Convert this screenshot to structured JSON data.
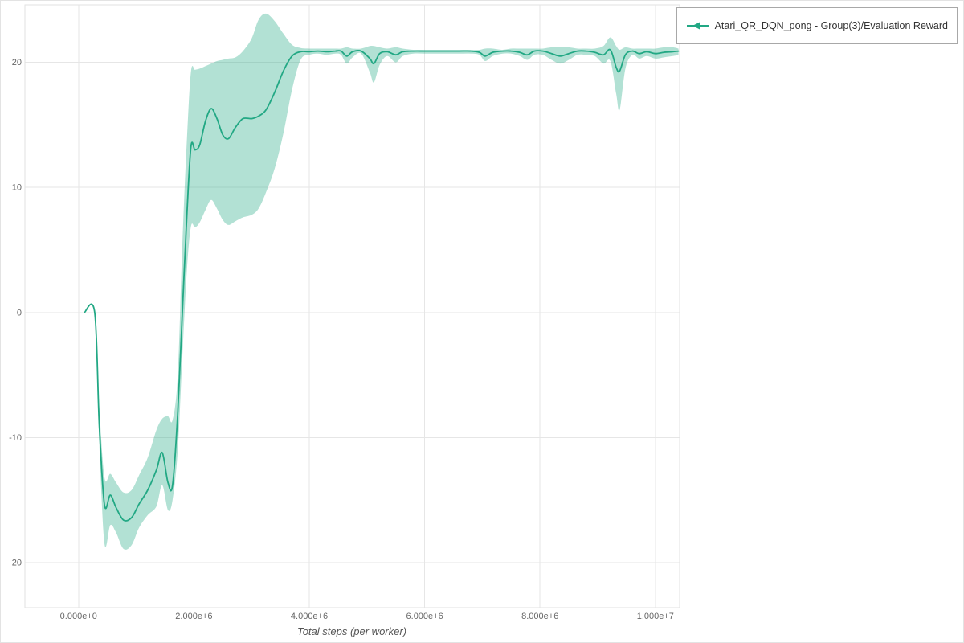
{
  "chart_data": {
    "type": "line",
    "title": "",
    "xlabel": "Total steps (per worker)",
    "ylabel": "",
    "xlim": [
      -930000,
      10420000
    ],
    "ylim": [
      -23.6,
      24.6
    ],
    "grid": true,
    "legend": {
      "position": "top-right",
      "entries": [
        "Atari_QR_DQN_pong - Group(3)/Evaluation Reward"
      ]
    },
    "x_ticks": {
      "values": [
        0,
        2000000,
        4000000,
        6000000,
        8000000,
        10000000
      ],
      "labels": [
        "0.000e+0",
        "2.000e+6",
        "4.000e+6",
        "6.000e+6",
        "8.000e+6",
        "1.000e+7"
      ]
    },
    "y_ticks": {
      "values": [
        -20,
        -10,
        0,
        10,
        20
      ],
      "labels": [
        "-20",
        "-10",
        "0",
        "10",
        "20"
      ]
    },
    "series": [
      {
        "name": "Atari_QR_DQN_pong - Group(3)/Evaluation Reward",
        "color": "#22a884",
        "band_opacity": 0.35,
        "x_unit": 1000000,
        "point_format": [
          "x_millions_of_steps",
          "mean_reward",
          "band_lower",
          "band_upper"
        ],
        "points": [
          [
            0.1,
            0.0,
            0.0,
            0.0
          ],
          [
            0.28,
            0.0,
            -0.1,
            0.1
          ],
          [
            0.36,
            -9.0,
            -10.5,
            -7.5
          ],
          [
            0.45,
            -15.4,
            -18.5,
            -13.2
          ],
          [
            0.55,
            -14.6,
            -17.0,
            -12.9
          ],
          [
            0.65,
            -15.6,
            -17.6,
            -13.6
          ],
          [
            0.78,
            -16.6,
            -18.9,
            -14.4
          ],
          [
            0.92,
            -16.4,
            -18.6,
            -14.2
          ],
          [
            1.05,
            -15.3,
            -17.2,
            -13.0
          ],
          [
            1.2,
            -14.2,
            -16.2,
            -11.6
          ],
          [
            1.35,
            -12.6,
            -15.5,
            -9.4
          ],
          [
            1.45,
            -11.2,
            -13.8,
            -8.5
          ],
          [
            1.55,
            -13.6,
            -15.8,
            -8.3
          ],
          [
            1.63,
            -13.8,
            -15.0,
            -8.6
          ],
          [
            1.72,
            -8.0,
            -11.0,
            -5.0
          ],
          [
            1.8,
            0.0,
            -3.5,
            5.5
          ],
          [
            1.88,
            8.0,
            3.5,
            14.0
          ],
          [
            1.95,
            13.3,
            6.9,
            19.3
          ],
          [
            2.02,
            13.0,
            6.8,
            19.4
          ],
          [
            2.1,
            13.4,
            7.2,
            19.5
          ],
          [
            2.2,
            15.3,
            8.2,
            19.7
          ],
          [
            2.3,
            16.3,
            9.0,
            19.9
          ],
          [
            2.4,
            15.5,
            8.3,
            20.1
          ],
          [
            2.5,
            14.2,
            7.4,
            20.2
          ],
          [
            2.6,
            13.9,
            7.0,
            20.3
          ],
          [
            2.72,
            14.8,
            7.3,
            20.4
          ],
          [
            2.85,
            15.5,
            7.6,
            20.9
          ],
          [
            3.0,
            15.5,
            7.8,
            21.9
          ],
          [
            3.12,
            15.7,
            8.3,
            23.4
          ],
          [
            3.25,
            16.2,
            9.6,
            23.9
          ],
          [
            3.4,
            17.6,
            11.5,
            23.3
          ],
          [
            3.55,
            19.3,
            14.3,
            22.3
          ],
          [
            3.7,
            20.5,
            17.8,
            21.4
          ],
          [
            3.85,
            20.85,
            20.2,
            21.15
          ],
          [
            4.0,
            20.85,
            20.6,
            21.1
          ],
          [
            4.15,
            20.9,
            20.7,
            21.1
          ],
          [
            4.3,
            20.85,
            20.6,
            21.1
          ],
          [
            4.45,
            20.9,
            20.7,
            21.1
          ],
          [
            4.55,
            20.9,
            20.6,
            21.1
          ],
          [
            4.65,
            20.5,
            19.9,
            21.2
          ],
          [
            4.75,
            20.85,
            20.4,
            21.1
          ],
          [
            4.9,
            20.9,
            20.7,
            21.1
          ],
          [
            5.05,
            20.3,
            19.2,
            21.3
          ],
          [
            5.12,
            19.9,
            18.4,
            21.3
          ],
          [
            5.22,
            20.7,
            19.8,
            21.2
          ],
          [
            5.35,
            20.85,
            20.5,
            21.1
          ],
          [
            5.5,
            20.6,
            20.0,
            21.2
          ],
          [
            5.62,
            20.85,
            20.5,
            21.1
          ],
          [
            5.8,
            20.9,
            20.7,
            21.0
          ],
          [
            6.0,
            20.9,
            20.7,
            21.0
          ],
          [
            6.2,
            20.9,
            20.7,
            21.0
          ],
          [
            6.4,
            20.9,
            20.7,
            21.0
          ],
          [
            6.6,
            20.9,
            20.7,
            21.0
          ],
          [
            6.8,
            20.9,
            20.7,
            21.0
          ],
          [
            6.95,
            20.8,
            20.6,
            21.0
          ],
          [
            7.05,
            20.5,
            20.1,
            21.1
          ],
          [
            7.18,
            20.8,
            20.5,
            21.1
          ],
          [
            7.35,
            20.9,
            20.7,
            21.0
          ],
          [
            7.5,
            20.9,
            20.7,
            21.1
          ],
          [
            7.65,
            20.8,
            20.5,
            21.1
          ],
          [
            7.78,
            20.6,
            20.2,
            21.1
          ],
          [
            7.9,
            20.9,
            20.6,
            21.1
          ],
          [
            8.05,
            20.9,
            20.6,
            21.1
          ],
          [
            8.2,
            20.7,
            20.2,
            21.2
          ],
          [
            8.35,
            20.5,
            19.9,
            21.2
          ],
          [
            8.5,
            20.7,
            20.2,
            21.2
          ],
          [
            8.65,
            20.9,
            20.6,
            21.1
          ],
          [
            8.8,
            20.9,
            20.6,
            21.1
          ],
          [
            8.95,
            20.8,
            20.5,
            21.1
          ],
          [
            9.1,
            20.6,
            19.9,
            21.3
          ],
          [
            9.22,
            21.0,
            20.1,
            22.0
          ],
          [
            9.32,
            19.6,
            17.5,
            21.3
          ],
          [
            9.38,
            19.3,
            16.2,
            21.0
          ],
          [
            9.48,
            20.6,
            19.5,
            21.2
          ],
          [
            9.6,
            20.9,
            20.6,
            21.1
          ],
          [
            9.72,
            20.7,
            20.3,
            21.1
          ],
          [
            9.85,
            20.85,
            20.5,
            21.1
          ],
          [
            10.0,
            20.7,
            20.3,
            21.1
          ],
          [
            10.15,
            20.8,
            20.4,
            21.2
          ],
          [
            10.3,
            20.85,
            20.5,
            21.2
          ],
          [
            10.4,
            20.9,
            20.6,
            21.1
          ]
        ]
      }
    ]
  },
  "colors": {
    "line": "#22a884",
    "band": "#22a884",
    "grid": "#e6e6e6",
    "tick_text": "#666666",
    "axis_label": "#555555",
    "legend_border": "#a8a8a8",
    "background": "#ffffff"
  }
}
